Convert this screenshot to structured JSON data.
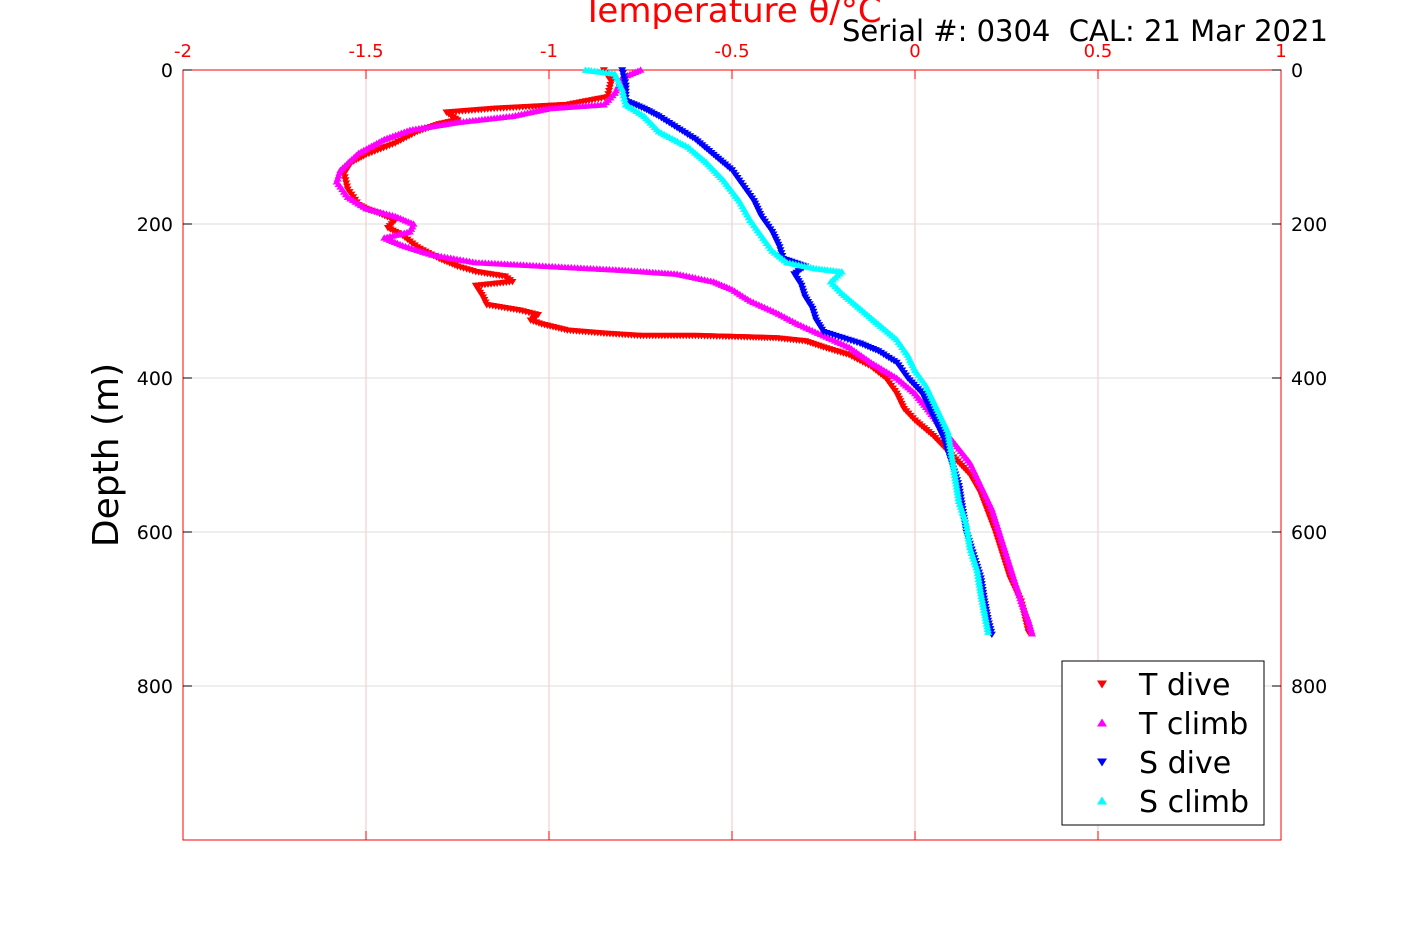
{
  "header": {
    "serial_label": "Serial #: 0304  CAL: 21 Mar 2021"
  },
  "colors": {
    "t_dive": "#ff0000",
    "t_climb": "#ff00ff",
    "s_dive": "#0000ff",
    "s_climb": "#00ffff",
    "top_axis": "#ff0000",
    "grid_x": "#f6c6c6",
    "grid_y": "#dcdcdc"
  },
  "chart_data": {
    "type": "scatter",
    "title": "Temperature θ/°C",
    "xlabel": "",
    "ylabel": "Depth (m)",
    "xlim": [
      -2,
      1
    ],
    "ylim": [
      1000,
      0
    ],
    "y_reversed": true,
    "x_axis_position": "top",
    "x_ticks": [
      -2,
      -1.5,
      -1,
      -0.5,
      0,
      0.5,
      1
    ],
    "x_tick_labels": [
      "-2",
      "-1.5",
      "-1",
      "-0.5",
      "0",
      "0.5",
      "1"
    ],
    "y_ticks": [
      0,
      200,
      400,
      600,
      800
    ],
    "y_tick_labels": [
      "0",
      "200",
      "400",
      "600",
      "800"
    ],
    "y_ticks_right": true,
    "grid": true,
    "legend_position": "bottom-right",
    "series": [
      {
        "name": "T dive",
        "marker": "triangle-down",
        "color": "#ff0000",
        "points": [
          [
            -0.85,
            0
          ],
          [
            -0.83,
            15
          ],
          [
            -0.84,
            35
          ],
          [
            -0.95,
            45
          ],
          [
            -1.15,
            50
          ],
          [
            -1.28,
            55
          ],
          [
            -1.25,
            65
          ],
          [
            -1.3,
            70
          ],
          [
            -1.36,
            80
          ],
          [
            -1.42,
            95
          ],
          [
            -1.5,
            110
          ],
          [
            -1.54,
            120
          ],
          [
            -1.56,
            135
          ],
          [
            -1.55,
            155
          ],
          [
            -1.52,
            175
          ],
          [
            -1.5,
            180
          ],
          [
            -1.47,
            185
          ],
          [
            -1.42,
            195
          ],
          [
            -1.44,
            205
          ],
          [
            -1.4,
            215
          ],
          [
            -1.36,
            230
          ],
          [
            -1.3,
            245
          ],
          [
            -1.25,
            255
          ],
          [
            -1.2,
            262
          ],
          [
            -1.12,
            268
          ],
          [
            -1.1,
            275
          ],
          [
            -1.2,
            280
          ],
          [
            -1.18,
            295
          ],
          [
            -1.17,
            305
          ],
          [
            -1.08,
            312
          ],
          [
            -1.03,
            318
          ],
          [
            -1.05,
            325
          ],
          [
            -1.02,
            330
          ],
          [
            -0.95,
            338
          ],
          [
            -0.85,
            342
          ],
          [
            -0.75,
            345
          ],
          [
            -0.6,
            345
          ],
          [
            -0.45,
            347
          ],
          [
            -0.38,
            348
          ],
          [
            -0.3,
            352
          ],
          [
            -0.25,
            360
          ],
          [
            -0.18,
            370
          ],
          [
            -0.12,
            385
          ],
          [
            -0.08,
            400
          ],
          [
            -0.05,
            420
          ],
          [
            -0.03,
            440
          ],
          [
            0,
            455
          ],
          [
            0.05,
            475
          ],
          [
            0.1,
            500
          ],
          [
            0.15,
            525
          ],
          [
            0.18,
            550
          ],
          [
            0.2,
            575
          ],
          [
            0.22,
            600
          ],
          [
            0.24,
            630
          ],
          [
            0.26,
            660
          ],
          [
            0.29,
            690
          ],
          [
            0.3,
            710
          ],
          [
            0.31,
            730
          ]
        ]
      },
      {
        "name": "T climb",
        "marker": "triangle-up",
        "color": "#ff00ff",
        "points": [
          [
            -0.75,
            0
          ],
          [
            -0.8,
            10
          ],
          [
            -0.82,
            30
          ],
          [
            -0.85,
            45
          ],
          [
            -1.0,
            50
          ],
          [
            -1.1,
            60
          ],
          [
            -1.25,
            68
          ],
          [
            -1.38,
            78
          ],
          [
            -1.45,
            90
          ],
          [
            -1.52,
            108
          ],
          [
            -1.57,
            130
          ],
          [
            -1.58,
            145
          ],
          [
            -1.55,
            165
          ],
          [
            -1.5,
            180
          ],
          [
            -1.42,
            190
          ],
          [
            -1.37,
            200
          ],
          [
            -1.38,
            210
          ],
          [
            -1.45,
            218
          ],
          [
            -1.4,
            228
          ],
          [
            -1.32,
            240
          ],
          [
            -1.2,
            250
          ],
          [
            -1.0,
            255
          ],
          [
            -0.8,
            260
          ],
          [
            -0.65,
            265
          ],
          [
            -0.55,
            275
          ],
          [
            -0.5,
            285
          ],
          [
            -0.45,
            300
          ],
          [
            -0.38,
            315
          ],
          [
            -0.32,
            330
          ],
          [
            -0.25,
            345
          ],
          [
            -0.18,
            360
          ],
          [
            -0.12,
            380
          ],
          [
            -0.05,
            400
          ],
          [
            0,
            420
          ],
          [
            0.05,
            450
          ],
          [
            0.1,
            480
          ],
          [
            0.15,
            510
          ],
          [
            0.18,
            540
          ],
          [
            0.21,
            570
          ],
          [
            0.23,
            600
          ],
          [
            0.25,
            630
          ],
          [
            0.27,
            660
          ],
          [
            0.29,
            690
          ],
          [
            0.31,
            715
          ],
          [
            0.32,
            732
          ]
        ]
      },
      {
        "name": "S dive",
        "marker": "triangle-down",
        "color": "#0000ff",
        "points": [
          [
            -0.8,
            0
          ],
          [
            -0.79,
            20
          ],
          [
            -0.79,
            40
          ],
          [
            -0.74,
            50
          ],
          [
            -0.7,
            60
          ],
          [
            -0.65,
            75
          ],
          [
            -0.6,
            90
          ],
          [
            -0.55,
            110
          ],
          [
            -0.5,
            130
          ],
          [
            -0.47,
            150
          ],
          [
            -0.44,
            170
          ],
          [
            -0.42,
            190
          ],
          [
            -0.39,
            210
          ],
          [
            -0.37,
            230
          ],
          [
            -0.36,
            245
          ],
          [
            -0.3,
            255
          ],
          [
            -0.33,
            265
          ],
          [
            -0.31,
            280
          ],
          [
            -0.3,
            295
          ],
          [
            -0.28,
            310
          ],
          [
            -0.27,
            325
          ],
          [
            -0.25,
            340
          ],
          [
            -0.15,
            355
          ],
          [
            -0.1,
            365
          ],
          [
            -0.05,
            380
          ],
          [
            -0.02,
            400
          ],
          [
            0.02,
            420
          ],
          [
            0.04,
            440
          ],
          [
            0.06,
            460
          ],
          [
            0.08,
            480
          ],
          [
            0.1,
            510
          ],
          [
            0.12,
            540
          ],
          [
            0.13,
            570
          ],
          [
            0.14,
            600
          ],
          [
            0.16,
            630
          ],
          [
            0.18,
            660
          ],
          [
            0.19,
            690
          ],
          [
            0.2,
            715
          ],
          [
            0.21,
            733
          ]
        ]
      },
      {
        "name": "S climb",
        "marker": "triangle-up",
        "color": "#00ffff",
        "points": [
          [
            -0.9,
            0
          ],
          [
            -0.82,
            5
          ],
          [
            -0.8,
            25
          ],
          [
            -0.79,
            45
          ],
          [
            -0.74,
            60
          ],
          [
            -0.7,
            80
          ],
          [
            -0.62,
            100
          ],
          [
            -0.57,
            120
          ],
          [
            -0.52,
            145
          ],
          [
            -0.48,
            170
          ],
          [
            -0.45,
            195
          ],
          [
            -0.42,
            215
          ],
          [
            -0.39,
            235
          ],
          [
            -0.35,
            250
          ],
          [
            -0.27,
            258
          ],
          [
            -0.2,
            262
          ],
          [
            -0.23,
            275
          ],
          [
            -0.2,
            290
          ],
          [
            -0.15,
            310
          ],
          [
            -0.1,
            330
          ],
          [
            -0.05,
            350
          ],
          [
            -0.02,
            370
          ],
          [
            0,
            390
          ],
          [
            0.03,
            410
          ],
          [
            0.05,
            430
          ],
          [
            0.07,
            450
          ],
          [
            0.09,
            470
          ],
          [
            0.1,
            500
          ],
          [
            0.11,
            530
          ],
          [
            0.12,
            560
          ],
          [
            0.14,
            590
          ],
          [
            0.15,
            620
          ],
          [
            0.17,
            650
          ],
          [
            0.18,
            680
          ],
          [
            0.19,
            705
          ],
          [
            0.2,
            730
          ]
        ]
      }
    ]
  }
}
